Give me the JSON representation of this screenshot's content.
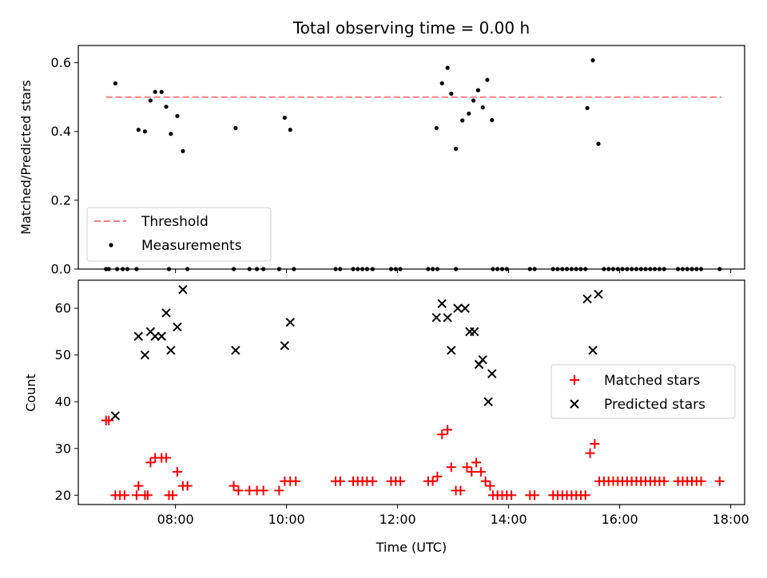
{
  "chart_data": [
    {
      "type": "scatter",
      "title": "Total observing time = 0.00 h",
      "xlabel": "",
      "ylabel": "Matched/Predicted stars",
      "xlim": [
        "06:15",
        "18:15"
      ],
      "ylim": [
        0,
        0.65
      ],
      "x_ticks": [
        "08:00",
        "10:00",
        "12:00",
        "14:00",
        "16:00",
        "18:00"
      ],
      "y_ticks": [
        "0.0",
        "0.2",
        "0.4",
        "0.6"
      ],
      "legend": {
        "position": "lower-left",
        "entries": [
          "Threshold",
          "Measurements"
        ]
      },
      "threshold": {
        "name": "Threshold",
        "value": 0.5,
        "color": "#f77f7f",
        "style": "dashed",
        "x_range": [
          "06:45",
          "17:50"
        ]
      },
      "series": [
        {
          "name": "Measurements",
          "color": "#000000",
          "points": [
            [
              "06:55",
              0.54
            ],
            [
              "07:20",
              0.405
            ],
            [
              "07:27",
              0.4
            ],
            [
              "07:33",
              0.49
            ],
            [
              "07:38",
              0.515
            ],
            [
              "07:45",
              0.515
            ],
            [
              "07:50",
              0.472
            ],
            [
              "07:55",
              0.393
            ],
            [
              "08:02",
              0.445
            ],
            [
              "08:08",
              0.343
            ],
            [
              "09:05",
              0.41
            ],
            [
              "09:58",
              0.44
            ],
            [
              "10:04",
              0.405
            ],
            [
              "12:42",
              0.41
            ],
            [
              "12:48",
              0.54
            ],
            [
              "12:54",
              0.585
            ],
            [
              "12:58",
              0.51
            ],
            [
              "13:03",
              0.35
            ],
            [
              "13:10",
              0.432
            ],
            [
              "13:17",
              0.452
            ],
            [
              "13:22",
              0.49
            ],
            [
              "13:27",
              0.52
            ],
            [
              "13:32",
              0.47
            ],
            [
              "13:37",
              0.55
            ],
            [
              "13:42",
              0.433
            ],
            [
              "15:25",
              0.468
            ],
            [
              "15:31",
              0.607
            ],
            [
              "15:37",
              0.364
            ],
            [
              "06:45",
              0
            ],
            [
              "06:48",
              0
            ],
            [
              "06:57",
              0
            ],
            [
              "07:03",
              0
            ],
            [
              "07:08",
              0
            ],
            [
              "07:18",
              0
            ],
            [
              "07:53",
              0
            ],
            [
              "08:13",
              0
            ],
            [
              "09:03",
              0
            ],
            [
              "09:20",
              0
            ],
            [
              "09:28",
              0
            ],
            [
              "09:35",
              0
            ],
            [
              "09:52",
              0
            ],
            [
              "10:08",
              0
            ],
            [
              "10:53",
              0
            ],
            [
              "10:58",
              0
            ],
            [
              "11:12",
              0
            ],
            [
              "11:17",
              0
            ],
            [
              "11:22",
              0
            ],
            [
              "11:27",
              0
            ],
            [
              "11:33",
              0
            ],
            [
              "11:53",
              0
            ],
            [
              "11:58",
              0
            ],
            [
              "12:03",
              0
            ],
            [
              "12:33",
              0
            ],
            [
              "12:38",
              0
            ],
            [
              "12:43",
              0
            ],
            [
              "13:03",
              0
            ],
            [
              "13:43",
              0
            ],
            [
              "13:48",
              0
            ],
            [
              "13:53",
              0
            ],
            [
              "13:58",
              0
            ],
            [
              "14:23",
              0
            ],
            [
              "14:28",
              0
            ],
            [
              "14:48",
              0
            ],
            [
              "14:53",
              0
            ],
            [
              "14:58",
              0
            ],
            [
              "15:03",
              0
            ],
            [
              "15:08",
              0
            ],
            [
              "15:13",
              0
            ],
            [
              "15:18",
              0
            ],
            [
              "15:23",
              0
            ],
            [
              "15:43",
              0
            ],
            [
              "15:48",
              0
            ],
            [
              "15:53",
              0
            ],
            [
              "15:58",
              0
            ],
            [
              "16:03",
              0
            ],
            [
              "16:08",
              0
            ],
            [
              "16:13",
              0
            ],
            [
              "16:18",
              0
            ],
            [
              "16:23",
              0
            ],
            [
              "16:28",
              0
            ],
            [
              "16:33",
              0
            ],
            [
              "16:38",
              0
            ],
            [
              "16:43",
              0
            ],
            [
              "16:48",
              0
            ],
            [
              "17:03",
              0
            ],
            [
              "17:08",
              0
            ],
            [
              "17:13",
              0
            ],
            [
              "17:18",
              0
            ],
            [
              "17:23",
              0
            ],
            [
              "17:28",
              0
            ],
            [
              "17:48",
              0
            ]
          ]
        }
      ]
    },
    {
      "type": "scatter",
      "title": "",
      "xlabel": "Time (UTC)",
      "ylabel": "Count",
      "xlim": [
        "06:15",
        "18:15"
      ],
      "ylim": [
        18,
        66
      ],
      "x_ticks": [
        "08:00",
        "10:00",
        "12:00",
        "14:00",
        "16:00",
        "18:00"
      ],
      "y_ticks": [
        "20",
        "30",
        "40",
        "50",
        "60"
      ],
      "legend": {
        "position": "center-right",
        "entries": [
          "Matched stars",
          "Predicted stars"
        ]
      },
      "series": [
        {
          "name": "Matched stars",
          "marker": "plus",
          "color": "#ff0000",
          "points": [
            [
              "06:45",
              36
            ],
            [
              "06:48",
              36
            ],
            [
              "06:55",
              20
            ],
            [
              "07:00",
              20
            ],
            [
              "07:05",
              20
            ],
            [
              "07:18",
              20
            ],
            [
              "07:20",
              22
            ],
            [
              "07:27",
              20
            ],
            [
              "07:30",
              20
            ],
            [
              "07:33",
              27
            ],
            [
              "07:38",
              28
            ],
            [
              "07:45",
              28
            ],
            [
              "07:50",
              28
            ],
            [
              "07:53",
              20
            ],
            [
              "07:57",
              20
            ],
            [
              "08:02",
              25
            ],
            [
              "08:08",
              22
            ],
            [
              "08:13",
              22
            ],
            [
              "09:03",
              22
            ],
            [
              "09:08",
              21
            ],
            [
              "09:20",
              21
            ],
            [
              "09:28",
              21
            ],
            [
              "09:35",
              21
            ],
            [
              "09:52",
              21
            ],
            [
              "09:58",
              23
            ],
            [
              "10:04",
              23
            ],
            [
              "10:10",
              23
            ],
            [
              "10:53",
              23
            ],
            [
              "10:58",
              23
            ],
            [
              "11:12",
              23
            ],
            [
              "11:17",
              23
            ],
            [
              "11:22",
              23
            ],
            [
              "11:27",
              23
            ],
            [
              "11:33",
              23
            ],
            [
              "11:53",
              23
            ],
            [
              "11:58",
              23
            ],
            [
              "12:03",
              23
            ],
            [
              "12:33",
              23
            ],
            [
              "12:38",
              23
            ],
            [
              "12:43",
              24
            ],
            [
              "12:48",
              33
            ],
            [
              "12:54",
              34
            ],
            [
              "12:58",
              26
            ],
            [
              "13:03",
              21
            ],
            [
              "13:08",
              21
            ],
            [
              "13:15",
              26
            ],
            [
              "13:20",
              25
            ],
            [
              "13:25",
              27
            ],
            [
              "13:30",
              25
            ],
            [
              "13:35",
              23
            ],
            [
              "13:40",
              22
            ],
            [
              "13:43",
              20
            ],
            [
              "13:48",
              20
            ],
            [
              "13:53",
              20
            ],
            [
              "13:58",
              20
            ],
            [
              "14:03",
              20
            ],
            [
              "14:23",
              20
            ],
            [
              "14:28",
              20
            ],
            [
              "14:48",
              20
            ],
            [
              "14:53",
              20
            ],
            [
              "14:58",
              20
            ],
            [
              "15:03",
              20
            ],
            [
              "15:08",
              20
            ],
            [
              "15:13",
              20
            ],
            [
              "15:18",
              20
            ],
            [
              "15:23",
              20
            ],
            [
              "15:28",
              29
            ],
            [
              "15:33",
              31
            ],
            [
              "15:38",
              23
            ],
            [
              "15:43",
              23
            ],
            [
              "15:48",
              23
            ],
            [
              "15:53",
              23
            ],
            [
              "15:58",
              23
            ],
            [
              "16:03",
              23
            ],
            [
              "16:08",
              23
            ],
            [
              "16:13",
              23
            ],
            [
              "16:18",
              23
            ],
            [
              "16:23",
              23
            ],
            [
              "16:28",
              23
            ],
            [
              "16:33",
              23
            ],
            [
              "16:38",
              23
            ],
            [
              "16:43",
              23
            ],
            [
              "16:48",
              23
            ],
            [
              "17:03",
              23
            ],
            [
              "17:08",
              23
            ],
            [
              "17:13",
              23
            ],
            [
              "17:18",
              23
            ],
            [
              "17:23",
              23
            ],
            [
              "17:28",
              23
            ],
            [
              "17:48",
              23
            ]
          ]
        },
        {
          "name": "Predicted stars",
          "marker": "x",
          "color": "#000000",
          "points": [
            [
              "06:55",
              37
            ],
            [
              "07:20",
              54
            ],
            [
              "07:27",
              50
            ],
            [
              "07:33",
              55
            ],
            [
              "07:38",
              54
            ],
            [
              "07:45",
              54
            ],
            [
              "07:50",
              59
            ],
            [
              "07:55",
              51
            ],
            [
              "08:02",
              56
            ],
            [
              "08:08",
              64
            ],
            [
              "09:05",
              51
            ],
            [
              "09:58",
              52
            ],
            [
              "10:04",
              57
            ],
            [
              "12:42",
              58
            ],
            [
              "12:48",
              61
            ],
            [
              "12:54",
              58
            ],
            [
              "12:58",
              51
            ],
            [
              "13:05",
              60
            ],
            [
              "13:13",
              60
            ],
            [
              "13:18",
              55
            ],
            [
              "13:23",
              55
            ],
            [
              "13:28",
              48
            ],
            [
              "13:32",
              49
            ],
            [
              "13:38",
              40
            ],
            [
              "13:42",
              46
            ],
            [
              "15:25",
              62
            ],
            [
              "15:31",
              51
            ],
            [
              "15:37",
              63
            ]
          ]
        }
      ]
    }
  ]
}
